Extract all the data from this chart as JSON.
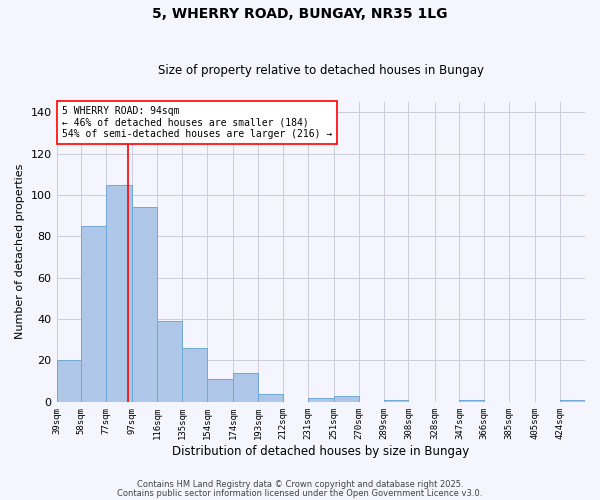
{
  "title": "5, WHERRY ROAD, BUNGAY, NR35 1LG",
  "subtitle": "Size of property relative to detached houses in Bungay",
  "xlabel": "Distribution of detached houses by size in Bungay",
  "ylabel": "Number of detached properties",
  "bar_labels": [
    "39sqm",
    "58sqm",
    "77sqm",
    "97sqm",
    "116sqm",
    "135sqm",
    "154sqm",
    "174sqm",
    "193sqm",
    "212sqm",
    "231sqm",
    "251sqm",
    "270sqm",
    "289sqm",
    "308sqm",
    "328sqm",
    "347sqm",
    "366sqm",
    "385sqm",
    "405sqm",
    "424sqm"
  ],
  "bar_values": [
    20,
    85,
    105,
    94,
    39,
    26,
    11,
    14,
    4,
    0,
    2,
    3,
    0,
    1,
    0,
    0,
    1,
    0,
    0,
    0,
    1
  ],
  "bin_edges": [
    39,
    58,
    77,
    97,
    116,
    135,
    154,
    174,
    193,
    212,
    231,
    251,
    270,
    289,
    308,
    328,
    347,
    366,
    385,
    405,
    424,
    443
  ],
  "bar_color": "#aec6e8",
  "bar_edgecolor": "#6fa8d6",
  "vline_x": 94,
  "vline_color": "red",
  "ylim": [
    0,
    145
  ],
  "yticks": [
    0,
    20,
    40,
    60,
    80,
    100,
    120,
    140
  ],
  "annotation_title": "5 WHERRY ROAD: 94sqm",
  "annotation_line1": "← 46% of detached houses are smaller (184)",
  "annotation_line2": "54% of semi-detached houses are larger (216) →",
  "footer1": "Contains HM Land Registry data © Crown copyright and database right 2025.",
  "footer2": "Contains public sector information licensed under the Open Government Licence v3.0.",
  "background_color": "#f5f5ff",
  "grid_color": "#ccccdd"
}
